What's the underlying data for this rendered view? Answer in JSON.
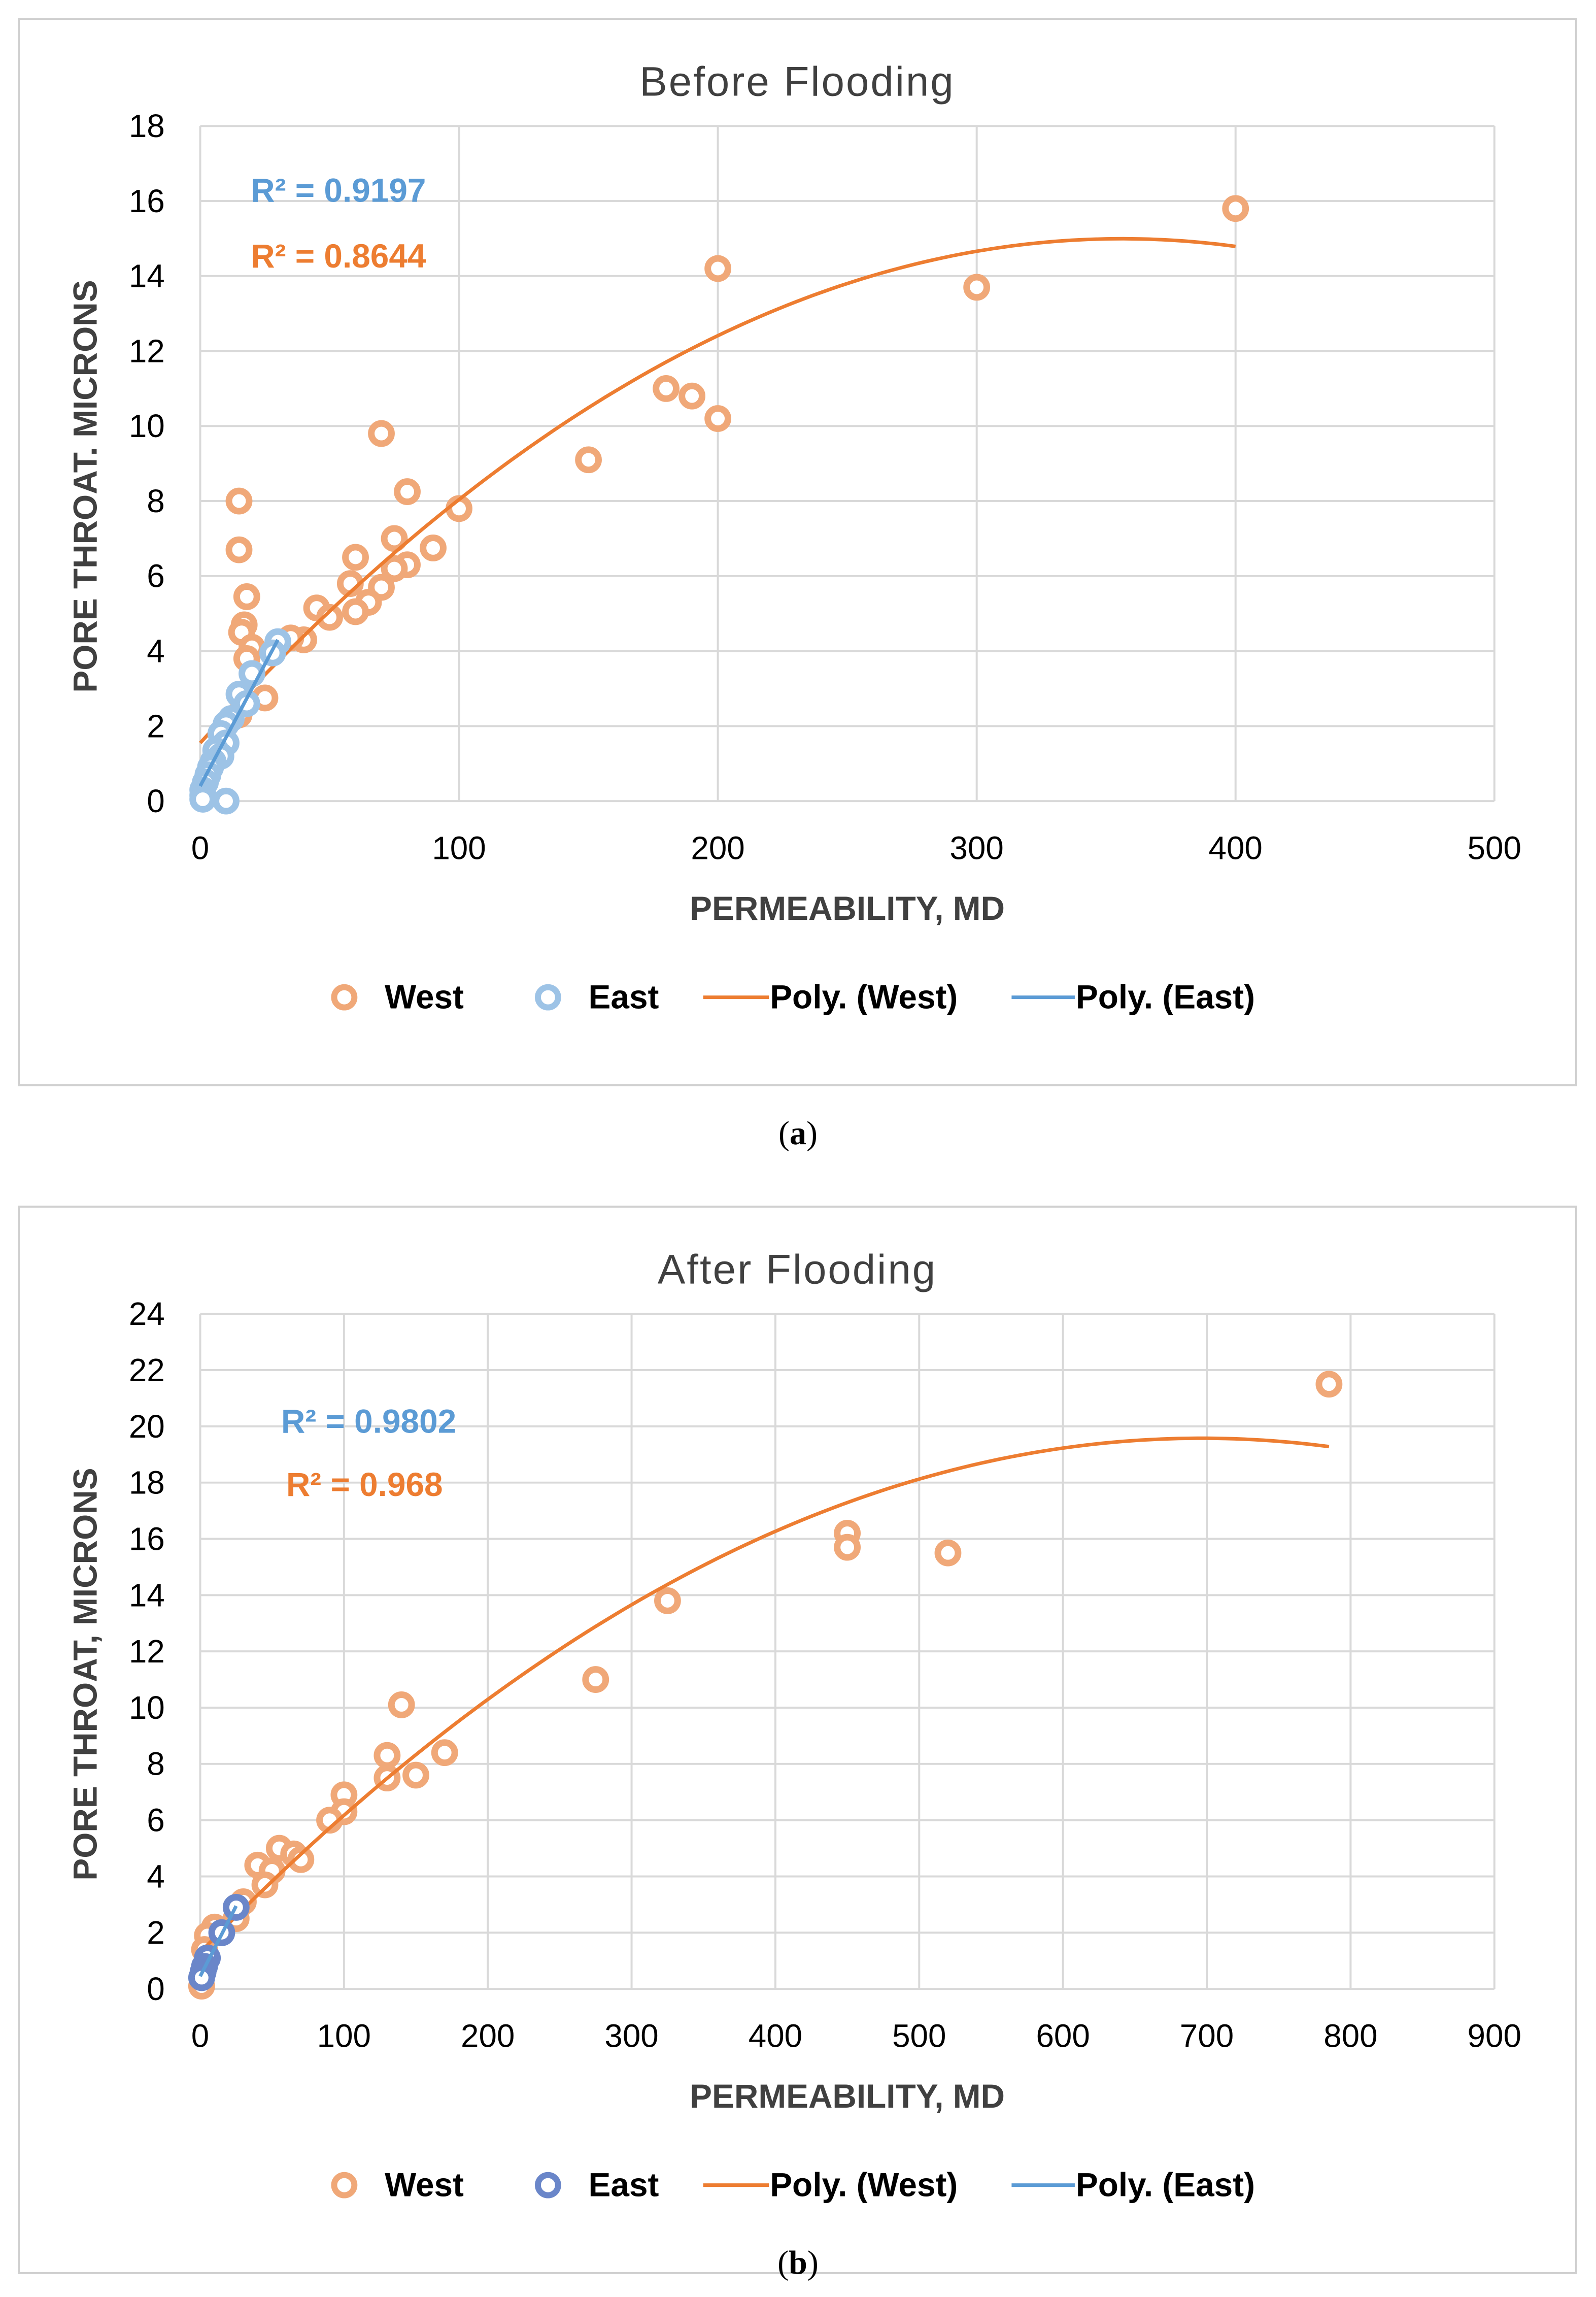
{
  "chart_data": [
    {
      "type": "scatter",
      "title": "Before Flooding",
      "xlabel": "PERMEABILITY, MD",
      "ylabel": "PORE THROAT. MICRONS",
      "xlim": [
        0,
        500
      ],
      "ylim": [
        0,
        18
      ],
      "x_ticks": [
        "0",
        "100",
        "200",
        "300",
        "400",
        "500"
      ],
      "y_ticks": [
        "0",
        "2",
        "4",
        "6",
        "8",
        "10",
        "12",
        "14",
        "16",
        "18"
      ],
      "grid": true,
      "legend_position": "bottom",
      "legend": [
        "West",
        "East",
        "Poly. (West)",
        "Poly. (East)"
      ],
      "annotations": {
        "r2_east": "R² = 0.9197",
        "r2_west": "R² = 0.8644"
      },
      "colors": {
        "west": "#f0a878",
        "west_line": "#ed7d31",
        "east": "#9dc3e6",
        "east_line": "#5b9bd5"
      },
      "series": [
        {
          "name": "West",
          "points": [
            [
              400,
              15.8
            ],
            [
              200,
              14.2
            ],
            [
              300,
              13.7
            ],
            [
              180,
              11.0
            ],
            [
              190,
              10.8
            ],
            [
              200,
              10.2
            ],
            [
              70,
              9.8
            ],
            [
              150,
              9.1
            ],
            [
              80,
              8.25
            ],
            [
              15,
              8.0
            ],
            [
              100,
              7.8
            ],
            [
              75,
              7.0
            ],
            [
              90,
              6.75
            ],
            [
              15,
              6.7
            ],
            [
              60,
              6.5
            ],
            [
              80,
              6.3
            ],
            [
              75,
              6.2
            ],
            [
              58,
              5.8
            ],
            [
              70,
              5.7
            ],
            [
              18,
              5.45
            ],
            [
              65,
              5.3
            ],
            [
              45,
              5.15
            ],
            [
              60,
              5.05
            ],
            [
              50,
              4.9
            ],
            [
              17,
              4.7
            ],
            [
              16,
              4.5
            ],
            [
              40,
              4.3
            ],
            [
              35,
              4.35
            ],
            [
              20,
              4.1
            ],
            [
              18,
              3.8
            ],
            [
              25,
              2.75
            ],
            [
              15,
              2.3
            ]
          ]
        },
        {
          "name": "East",
          "points": [
            [
              30,
              4.25
            ],
            [
              28,
              3.95
            ],
            [
              20,
              3.4
            ],
            [
              15,
              2.85
            ],
            [
              18,
              2.6
            ],
            [
              12,
              2.2
            ],
            [
              10,
              2.05
            ],
            [
              8,
              1.8
            ],
            [
              10,
              1.55
            ],
            [
              6,
              1.35
            ],
            [
              8,
              1.2
            ],
            [
              5,
              1.05
            ],
            [
              4,
              0.9
            ],
            [
              3,
              0.7
            ],
            [
              2,
              0.5
            ],
            [
              1,
              0.3
            ],
            [
              1,
              0.15
            ],
            [
              1,
              0.05
            ],
            [
              10,
              0.0
            ]
          ]
        },
        {
          "name": "Poly. (West)",
          "fit": "quadratic",
          "coef": [
            1.55,
            0.0755,
            -0.000106
          ],
          "x_range": [
            0,
            400
          ]
        },
        {
          "name": "Poly. (East)",
          "fit": "quadratic",
          "coef": [
            0.4,
            0.13,
            0.0
          ],
          "x_range": [
            0,
            30
          ]
        }
      ]
    },
    {
      "type": "scatter",
      "title": "After Flooding",
      "xlabel": "PERMEABILITY, MD",
      "ylabel": "PORE THROAT, MICRONS",
      "xlim": [
        0,
        900
      ],
      "ylim": [
        0,
        24
      ],
      "x_ticks": [
        "0",
        "100",
        "200",
        "300",
        "400",
        "500",
        "600",
        "700",
        "800",
        "900"
      ],
      "y_ticks": [
        "0",
        "2",
        "4",
        "6",
        "8",
        "10",
        "12",
        "14",
        "16",
        "18",
        "20",
        "22",
        "24"
      ],
      "grid": true,
      "legend_position": "bottom",
      "legend": [
        "West",
        "East",
        "Poly. (West)",
        "Poly. (East)"
      ],
      "annotations": {
        "r2_east": "R² = 0.9802",
        "r2_west": "R² = 0.968"
      },
      "colors": {
        "west": "#f0a878",
        "west_line": "#ed7d31",
        "east": "#6a86c9",
        "east_line": "#5b9bd5"
      },
      "series": [
        {
          "name": "West",
          "points": [
            [
              785,
              21.5
            ],
            [
              450,
              16.2
            ],
            [
              450,
              15.7
            ],
            [
              520,
              15.5
            ],
            [
              325,
              13.8
            ],
            [
              275,
              11.0
            ],
            [
              140,
              10.1
            ],
            [
              170,
              8.4
            ],
            [
              130,
              8.3
            ],
            [
              150,
              7.6
            ],
            [
              130,
              7.5
            ],
            [
              100,
              6.9
            ],
            [
              100,
              6.3
            ],
            [
              90,
              6.0
            ],
            [
              55,
              5.0
            ],
            [
              65,
              4.8
            ],
            [
              70,
              4.6
            ],
            [
              40,
              4.4
            ],
            [
              50,
              4.2
            ],
            [
              45,
              3.7
            ],
            [
              30,
              3.1
            ],
            [
              25,
              2.5
            ],
            [
              10,
              2.2
            ],
            [
              5,
              1.9
            ],
            [
              3,
              1.4
            ],
            [
              1,
              0.1
            ]
          ]
        },
        {
          "name": "East",
          "points": [
            [
              25,
              2.9
            ],
            [
              15,
              2.0
            ],
            [
              5,
              1.1
            ],
            [
              3,
              0.8
            ],
            [
              2,
              0.6
            ],
            [
              1,
              0.4
            ]
          ]
        },
        {
          "name": "Poly. (West)",
          "fit": "quadratic",
          "coef": [
            1.3,
            0.0525,
            -3.77e-05
          ],
          "x_range": [
            0,
            785
          ]
        },
        {
          "name": "Poly. (East)",
          "fit": "quadratic",
          "coef": [
            0.45,
            0.1,
            0.0
          ],
          "x_range": [
            0,
            25
          ]
        }
      ]
    }
  ],
  "captions": {
    "a_open": "(",
    "a_letter": "a",
    "a_close": ")",
    "b_open": "(",
    "b_letter": "b",
    "b_close": ")"
  }
}
